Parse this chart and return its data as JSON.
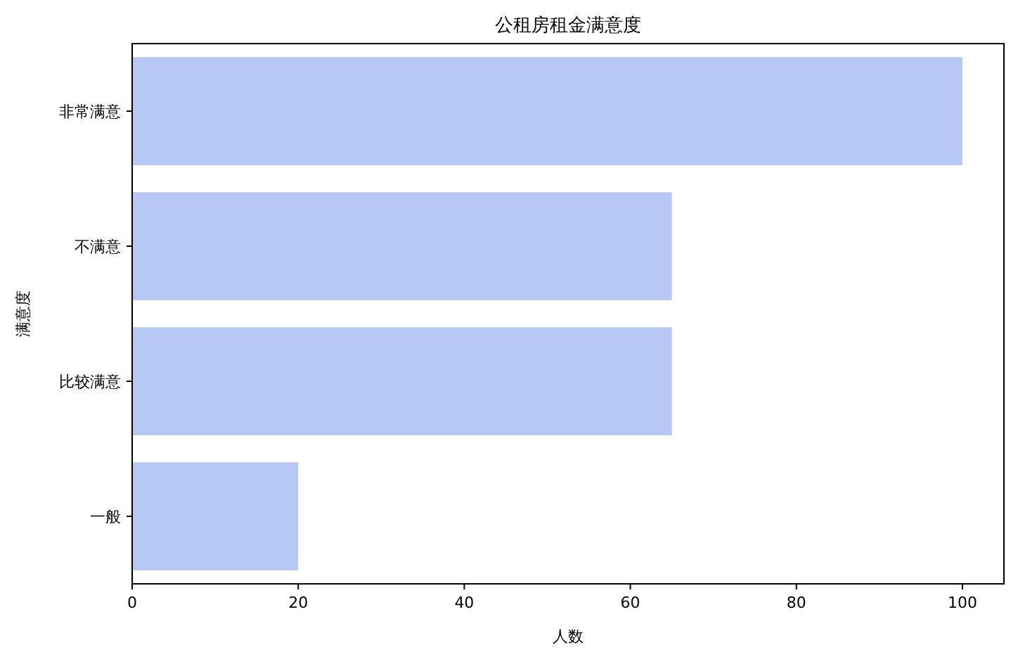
{
  "chart_data": {
    "type": "bar",
    "orientation": "horizontal",
    "title": "公租房租金满意度",
    "xlabel": "人数",
    "ylabel": "满意度",
    "categories": [
      "非常满意",
      "不满意",
      "比较满意",
      "一般"
    ],
    "values": [
      100,
      65,
      65,
      20
    ],
    "color": "#b7c8f4",
    "xlim": [
      0,
      105
    ],
    "xticks": [
      0,
      20,
      40,
      60,
      80,
      100
    ],
    "grid": false
  }
}
